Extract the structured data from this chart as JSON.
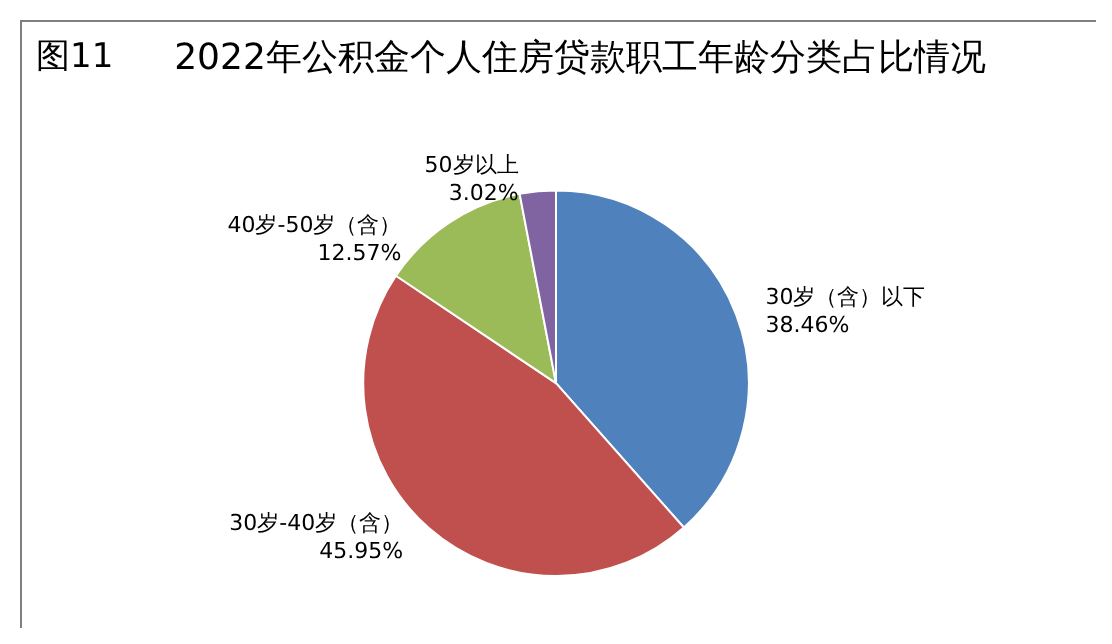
{
  "chart_data": {
    "type": "pie",
    "title": "2022年公积金个人住房贷款职工年龄分类占比情况",
    "annotations": [
      "图11"
    ],
    "categories": [
      "30岁（含）以下",
      "30岁-40岁（含）",
      "40岁-50岁（含）",
      "50岁以上"
    ],
    "values": [
      38.46,
      45.95,
      12.57,
      3.02
    ],
    "value_labels": [
      "38.46%",
      "45.95%",
      "12.57%",
      "3.02%"
    ],
    "colors": [
      "#4f81bd",
      "#c0504d",
      "#9bbb59",
      "#8064a2"
    ],
    "legend": false
  }
}
